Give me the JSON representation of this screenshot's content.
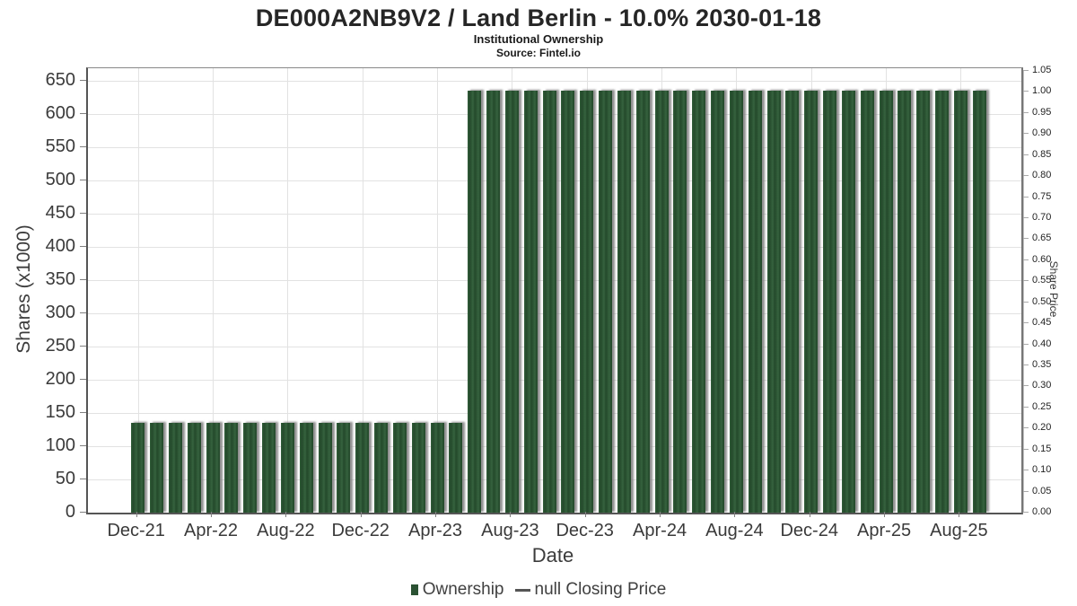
{
  "header": {
    "title": "DE000A2NB9V2 / Land Berlin - 10.0% 2030-01-18",
    "subtitle": "Institutional Ownership",
    "source": "Source: Fintel.io"
  },
  "axes": {
    "x_label": "Date",
    "y_left_label": "Shares (x1000)",
    "y_right_label": "Share Price"
  },
  "legend": {
    "items": [
      {
        "label": "Ownership",
        "marker": "square",
        "color": "#2b5233"
      },
      {
        "label": "null Closing Price",
        "marker": "dash",
        "color": "#555555"
      }
    ]
  },
  "chart_data": {
    "type": "bar",
    "title": "DE000A2NB9V2 / Land Berlin - 10.0% 2030-01-18",
    "subtitle": "Institutional Ownership",
    "source": "Source: Fintel.io",
    "xlabel": "Date",
    "ylabel_left": "Shares (x1000)",
    "ylabel_right": "Share Price",
    "grid": true,
    "legend_position": "bottom",
    "bar_color": "#2b5233",
    "grid_color": "#e2e2e2",
    "x": [
      "Dec-21",
      "Jan-22",
      "Feb-22",
      "Mar-22",
      "Apr-22",
      "May-22",
      "Jun-22",
      "Jul-22",
      "Aug-22",
      "Sep-22",
      "Oct-22",
      "Nov-22",
      "Dec-22",
      "Jan-23",
      "Feb-23",
      "Mar-23",
      "Apr-23",
      "May-23",
      "Jun-23",
      "Jul-23",
      "Aug-23",
      "Sep-23",
      "Oct-23",
      "Nov-23",
      "Dec-23",
      "Jan-24",
      "Feb-24",
      "Mar-24",
      "Apr-24",
      "May-24",
      "Jun-24",
      "Jul-24",
      "Aug-24",
      "Sep-24",
      "Oct-24",
      "Nov-24",
      "Dec-24",
      "Jan-25",
      "Feb-25",
      "Mar-25",
      "Apr-25",
      "May-25",
      "Jun-25",
      "Jul-25",
      "Aug-25",
      "Sep-25"
    ],
    "series": [
      {
        "name": "Ownership",
        "axis": "left",
        "values": [
          135,
          135,
          135,
          135,
          135,
          135,
          135,
          135,
          135,
          135,
          135,
          135,
          135,
          135,
          135,
          135,
          135,
          135,
          635,
          635,
          635,
          635,
          635,
          635,
          635,
          635,
          635,
          635,
          635,
          635,
          635,
          635,
          635,
          635,
          635,
          635,
          635,
          635,
          635,
          635,
          635,
          635,
          635,
          635,
          635,
          635
        ]
      },
      {
        "name": "null Closing Price",
        "axis": "right",
        "values": null
      }
    ],
    "x_ticks": {
      "month_indices": [
        0,
        4,
        8,
        12,
        16,
        20,
        24,
        28,
        32,
        36,
        40,
        44
      ],
      "labels": [
        "Dec-21",
        "Apr-22",
        "Aug-22",
        "Dec-22",
        "Apr-23",
        "Aug-23",
        "Dec-23",
        "Apr-24",
        "Aug-24",
        "Dec-24",
        "Apr-25",
        "Aug-25"
      ]
    },
    "y_left_axis": {
      "min": 0,
      "max": 650,
      "step": 50
    },
    "y_right_axis": {
      "min": 0.0,
      "max": 1.05,
      "step": 0.05
    }
  }
}
